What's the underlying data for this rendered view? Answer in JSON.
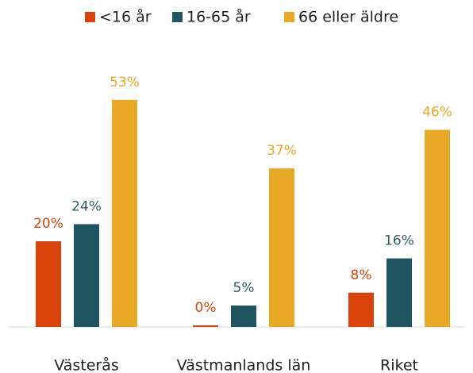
{
  "chart_data": {
    "type": "bar",
    "categories": [
      "Västerås",
      "Västmanlands län",
      "Riket"
    ],
    "series": [
      {
        "name": "<16 år",
        "color": "#d9420b",
        "values": [
          20,
          0,
          8
        ],
        "value_labels": [
          "20%",
          "0%",
          "8%"
        ]
      },
      {
        "name": "16-65 år",
        "color": "#1f5662",
        "values": [
          24,
          5,
          16
        ],
        "value_labels": [
          "24%",
          "5%",
          "16%"
        ]
      },
      {
        "name": "66 eller äldre",
        "color": "#e8a927",
        "values": [
          53,
          37,
          46
        ],
        "value_labels": [
          "53%",
          "37%",
          "46%"
        ]
      }
    ],
    "legend": "top"
  }
}
